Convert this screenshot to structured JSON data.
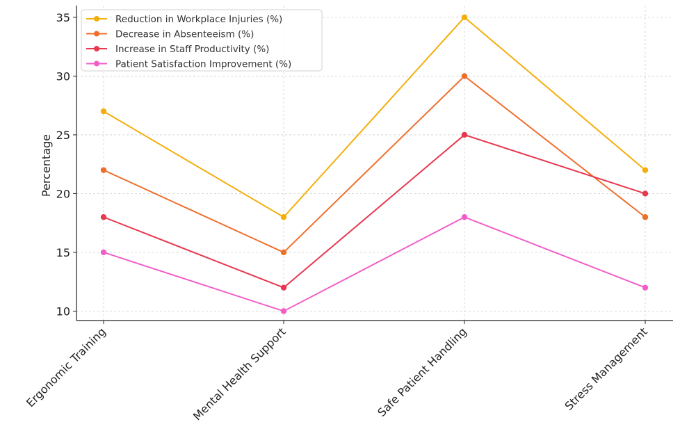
{
  "chart_data": {
    "type": "line",
    "title": "",
    "xlabel": "",
    "ylabel": "Percentage",
    "categories": [
      "Ergonomic Training",
      "Mental Health Support",
      "Safe Patient Handling",
      "Stress Management"
    ],
    "ylim": [
      9.2,
      36
    ],
    "yticks": [
      10,
      15,
      20,
      25,
      30,
      35
    ],
    "grid": true,
    "legend_position": "top-left",
    "series": [
      {
        "name": "Reduction in Workplace Injuries (%)",
        "color": "#f4ae0c",
        "values": [
          27,
          18,
          35,
          22
        ]
      },
      {
        "name": "Decrease in Absenteeism (%)",
        "color": "#ef6e2c",
        "values": [
          22,
          15,
          30,
          18
        ]
      },
      {
        "name": "Increase in Staff Productivity (%)",
        "color": "#e63950",
        "values": [
          18,
          12,
          25,
          20
        ]
      },
      {
        "name": "Patient Satisfaction Improvement (%)",
        "color": "#f25ec8",
        "values": [
          15,
          10,
          18,
          12
        ]
      }
    ]
  }
}
